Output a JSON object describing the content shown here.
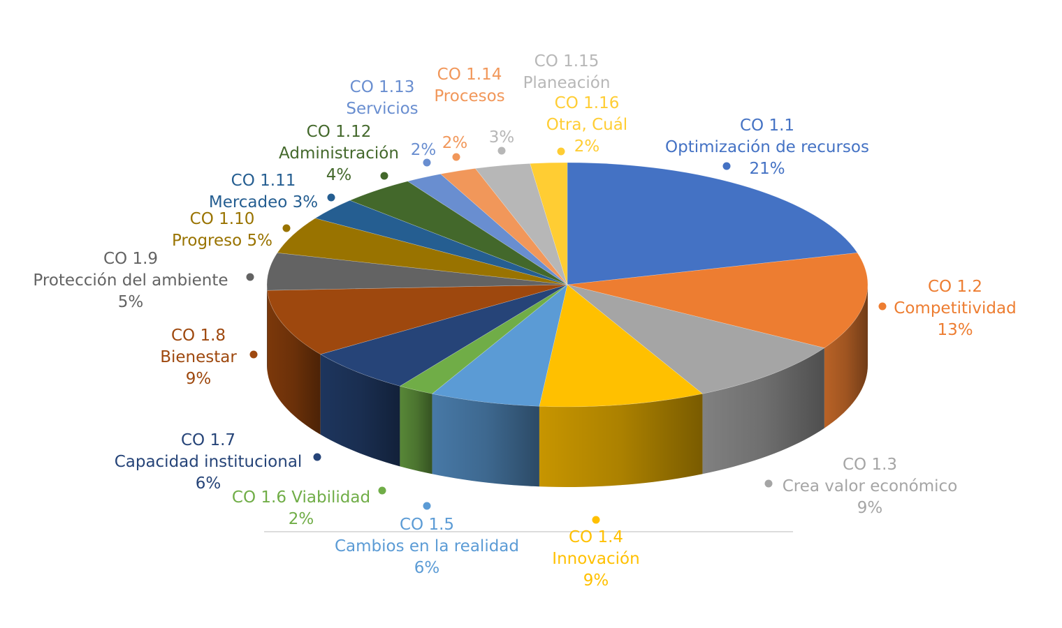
{
  "chart_data": {
    "type": "pie",
    "style": "3d",
    "legend": "none",
    "slices": [
      {
        "name": "CO 1.1",
        "desc": "Optimización de recursos",
        "value": 21,
        "label": "21%",
        "color": "#4472c4"
      },
      {
        "name": "CO 1.2",
        "desc": "Competitividad",
        "value": 13,
        "label": "13%",
        "color": "#ed7d31"
      },
      {
        "name": "CO 1.3",
        "desc": "Crea valor económico",
        "value": 9,
        "label": "9%",
        "color": "#a5a5a5"
      },
      {
        "name": "CO 1.4",
        "desc": "Innovación",
        "value": 9,
        "label": "9%",
        "color": "#ffc000"
      },
      {
        "name": "CO 1.5",
        "desc": "Cambios en la realidad",
        "value": 6,
        "label": "6%",
        "color": "#5b9bd5"
      },
      {
        "name": "CO 1.6",
        "desc": "Viabilidad",
        "value": 2,
        "label": "2%",
        "color": "#70ad47"
      },
      {
        "name": "CO 1.7",
        "desc": "Capacidad institucional",
        "value": 6,
        "label": "6%",
        "color": "#264478"
      },
      {
        "name": "CO 1.8",
        "desc": "Bienestar",
        "value": 9,
        "label": "9%",
        "color": "#9e480e"
      },
      {
        "name": "CO 1.9",
        "desc": "Protección del ambiente",
        "value": 5,
        "label": "5%",
        "color": "#636363"
      },
      {
        "name": "CO 1.10",
        "desc": "Progreso",
        "value": 5,
        "label": "5%",
        "color": "#997300"
      },
      {
        "name": "CO 1.11",
        "desc": "Mercadeo",
        "value": 3,
        "label": "3%",
        "color": "#255e91"
      },
      {
        "name": "CO 1.12",
        "desc": "Administración",
        "value": 4,
        "label": "4%",
        "color": "#43682b"
      },
      {
        "name": "CO 1.13",
        "desc": "Servicios",
        "value": 2,
        "label": "2%",
        "color": "#698ed0"
      },
      {
        "name": "CO 1.14",
        "desc": "Procesos",
        "value": 2,
        "label": "2%",
        "color": "#f1975a"
      },
      {
        "name": "CO 1.15",
        "desc": "Planeación",
        "value": 3,
        "label": "3%",
        "color": "#b7b7b7"
      },
      {
        "name": "CO 1.16",
        "desc": "Otra, Cuál",
        "value": 2,
        "label": "2%",
        "color": "#ffcd33"
      }
    ]
  }
}
